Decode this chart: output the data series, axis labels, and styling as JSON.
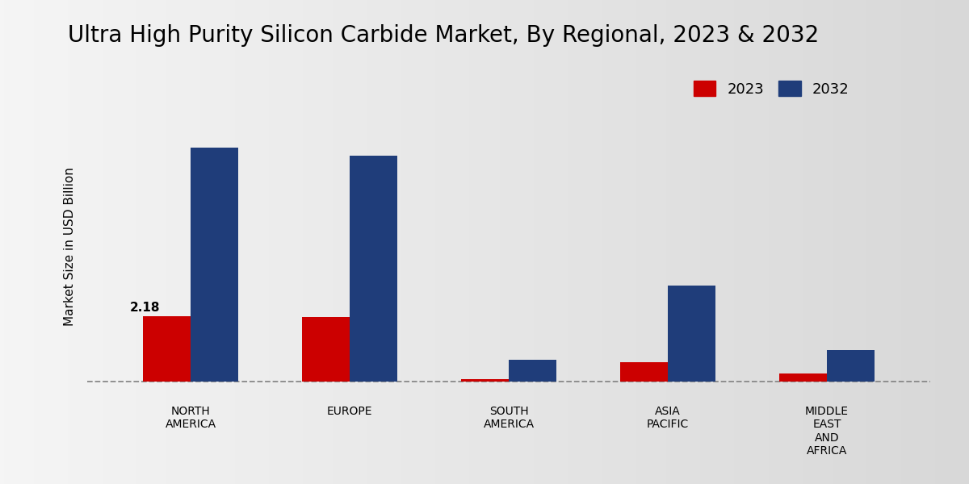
{
  "title": "Ultra High Purity Silicon Carbide Market, By Regional, 2023 & 2032",
  "ylabel": "Market Size in USD Billion",
  "categories": [
    "NORTH\nAMERICA",
    "EUROPE",
    "SOUTH\nAMERICA",
    "ASIA\nPACIFIC",
    "MIDDLE\nEAST\nAND\nAFRICA"
  ],
  "values_2023": [
    2.18,
    2.15,
    0.1,
    0.65,
    0.28
  ],
  "values_2032": [
    7.8,
    7.55,
    0.75,
    3.2,
    1.05
  ],
  "color_2023": "#cc0000",
  "color_2032": "#1f3d7a",
  "annotation_value": "2.18",
  "bar_width": 0.3,
  "bg_left": "#f5f5f5",
  "bg_right": "#d8d8d8",
  "ylim": [
    -0.5,
    9.5
  ],
  "title_fontsize": 20,
  "ylabel_fontsize": 11,
  "tick_fontsize": 10,
  "legend_fontsize": 13,
  "bottom_bar_color": "#cc0000",
  "annotation_fontsize": 11
}
